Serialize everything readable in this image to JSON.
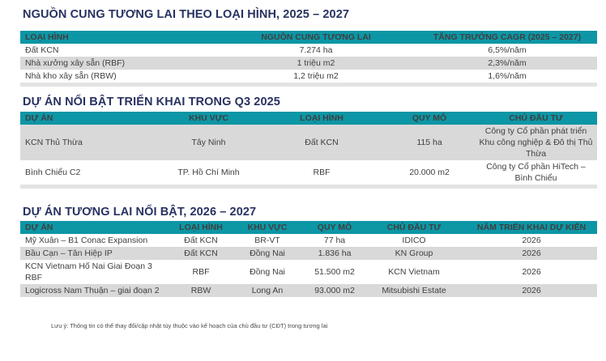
{
  "page": {
    "accent_teal": "#0d96a5",
    "row_gray": "#d9d9d9",
    "title_color": "#283261",
    "footnote": "Lưu ý: Thông tin có thể thay đổi/cập nhật tùy thuộc vào kế hoạch của chủ đầu tư (CĐT) trong tương lai"
  },
  "tables": [
    {
      "title": "NGUỒN CUNG TƯƠNG LAI THEO LOẠI HÌNH, 2025 – 2027",
      "columns": [
        {
          "label": "LOẠI HÌNH"
        },
        {
          "label": "NGUỒN CUNG TƯƠNG LAI"
        },
        {
          "label": "TĂNG TRƯỞNG CAGR (2025 – 2027)"
        }
      ],
      "rows": [
        [
          "Đất KCN",
          "7.274 ha",
          "6,5%/năm"
        ],
        [
          "Nhà xưởng xây sẵn (RBF)",
          "1 triệu m2",
          "2,3%/năm"
        ],
        [
          "Nhà kho xây sẵn (RBW)",
          "1,2 triệu m2",
          "1,6%/năm"
        ]
      ],
      "shaded_rows": [
        1
      ],
      "bottom_strip": true
    },
    {
      "title": "DỰ ÁN NỔI BẬT TRIỂN KHAI TRONG Q3 2025",
      "columns": [
        {
          "label": "DỰ ÁN"
        },
        {
          "label": "KHU VỰC"
        },
        {
          "label": "LOẠI HÌNH"
        },
        {
          "label": "QUY MÔ"
        },
        {
          "label": "CHỦ ĐẦU TƯ"
        }
      ],
      "rows": [
        [
          "KCN Thủ Thừa",
          "Tây Ninh",
          "Đất KCN",
          "115 ha",
          "Công ty Cổ phần phát triển Khu công nghiệp & Đô thị Thủ Thừa"
        ],
        [
          "Bình Chiểu C2",
          "TP. Hồ Chí Minh",
          "RBF",
          "20.000 m2",
          "Công ty Cổ phần HiTech – Bình Chiểu"
        ]
      ],
      "shaded_rows": [
        0
      ],
      "bottom_strip": true
    },
    {
      "title": "DỰ ÁN TƯƠNG LAI NỔI BẬT, 2026 – 2027",
      "columns": [
        {
          "label": "DỰ ÁN"
        },
        {
          "label": "LOẠI HÌNH"
        },
        {
          "label": "KHU VỰC"
        },
        {
          "label": "QUY MÔ"
        },
        {
          "label": "CHỦ ĐẦU TƯ"
        },
        {
          "label": "NĂM TRIỂN KHAI DỰ KIẾN"
        }
      ],
      "rows": [
        [
          "Mỹ Xuân – B1 Conac Expansion",
          "Đất KCN",
          "BR-VT",
          "77 ha",
          "IDICO",
          "2026"
        ],
        [
          "Bầu Cạn – Tân Hiệp IP",
          "Đất KCN",
          "Đồng Nai",
          "1.836 ha",
          "KN Group",
          "2026"
        ],
        [
          "KCN Vietnam Hố Nai Giai Đoạn 3 RBF",
          "RBF",
          "Đồng Nai",
          "51.500 m2",
          "KCN Vietnam",
          "2026"
        ],
        [
          "Logicross Nam Thuận – giai đoạn 2",
          "RBW",
          "Long An",
          "93.000 m2",
          "Mitsubishi Estate",
          "2026"
        ]
      ],
      "shaded_rows": [
        1,
        3
      ],
      "bottom_strip": false
    }
  ]
}
